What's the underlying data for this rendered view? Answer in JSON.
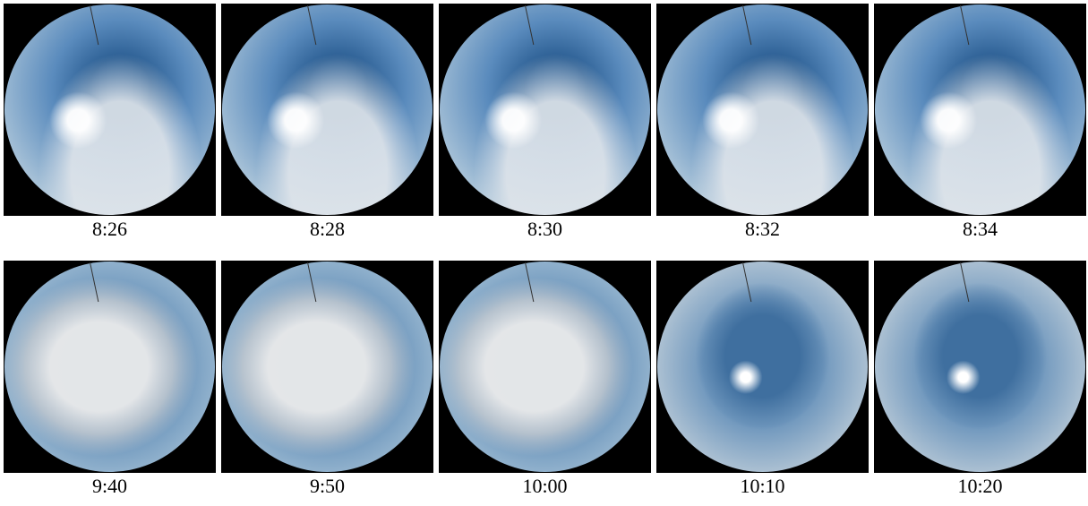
{
  "rows": [
    [
      "8:26",
      "8:28",
      "8:30",
      "8:32",
      "8:34"
    ],
    [
      "9:40",
      "9:50",
      "10:00",
      "10:10",
      "10:20"
    ]
  ]
}
